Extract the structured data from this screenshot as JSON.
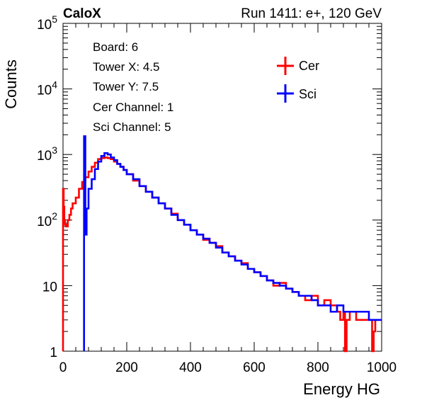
{
  "header": {
    "experiment": "CaloX",
    "run": "Run 1411: e+, 120 GeV"
  },
  "info": {
    "lines": [
      "Board: 6",
      "Tower X: 4.5",
      "Tower Y: 7.5",
      "Cer Channel: 1",
      "Sci Channel: 5"
    ]
  },
  "chart_data": {
    "type": "line",
    "histogram": true,
    "xlabel": "Energy HG",
    "ylabel": "Counts",
    "xlim": [
      0,
      1000
    ],
    "ylim": [
      1,
      100000
    ],
    "ylog": true,
    "x_ticks": [
      0,
      200,
      400,
      600,
      800,
      1000
    ],
    "x_tick_labels": [
      "0",
      "200",
      "400",
      "600",
      "800",
      "1000"
    ],
    "y_ticks": [
      1,
      10,
      100,
      1000,
      10000,
      100000
    ],
    "y_tick_labels": [
      {
        "base": "1",
        "exp": ""
      },
      {
        "base": "10",
        "exp": ""
      },
      {
        "base": "10",
        "exp": "2"
      },
      {
        "base": "10",
        "exp": "3"
      },
      {
        "base": "10",
        "exp": "4"
      },
      {
        "base": "10",
        "exp": "5"
      }
    ],
    "legend_position": "top-right",
    "grid": false,
    "series": [
      {
        "name": "Cer",
        "color": "#ff0000",
        "x": [
          0,
          2,
          4,
          6,
          10,
          15,
          20,
          25,
          30,
          40,
          50,
          60,
          70,
          80,
          90,
          100,
          110,
          120,
          130,
          140,
          150,
          160,
          170,
          180,
          190,
          200,
          220,
          240,
          260,
          280,
          300,
          320,
          340,
          360,
          380,
          400,
          420,
          440,
          460,
          480,
          500,
          520,
          540,
          560,
          580,
          600,
          620,
          640,
          660,
          680,
          700,
          720,
          740,
          760,
          780,
          800,
          820,
          840,
          860,
          870,
          880,
          885,
          890,
          900,
          920,
          940,
          960,
          970,
          975,
          980,
          990,
          1000
        ],
        "y": [
          300,
          160,
          100,
          85,
          80,
          100,
          120,
          150,
          180,
          220,
          300,
          380,
          450,
          550,
          650,
          750,
          850,
          880,
          900,
          880,
          850,
          780,
          720,
          650,
          580,
          500,
          400,
          330,
          270,
          220,
          180,
          150,
          125,
          100,
          85,
          70,
          60,
          50,
          45,
          40,
          32,
          28,
          24,
          22,
          18,
          16,
          14,
          12,
          10,
          11,
          9,
          8,
          7,
          6,
          7,
          5,
          6,
          5,
          4,
          3,
          4,
          1,
          3,
          4,
          3,
          3,
          3,
          1,
          2,
          3,
          3,
          3
        ]
      },
      {
        "name": "Sci",
        "color": "#0000ff",
        "x": [
          66,
          70,
          74,
          80,
          90,
          100,
          110,
          120,
          130,
          140,
          150,
          160,
          170,
          180,
          190,
          200,
          220,
          240,
          260,
          280,
          300,
          320,
          340,
          360,
          380,
          400,
          420,
          440,
          460,
          480,
          500,
          520,
          540,
          560,
          580,
          600,
          620,
          640,
          660,
          680,
          700,
          720,
          740,
          760,
          780,
          800,
          820,
          840,
          860,
          880,
          900,
          920,
          940,
          960,
          980,
          1000
        ],
        "y": [
          1900,
          60,
          150,
          300,
          420,
          600,
          780,
          950,
          1050,
          1000,
          900,
          820,
          720,
          650,
          580,
          500,
          420,
          330,
          270,
          220,
          180,
          150,
          120,
          100,
          85,
          70,
          60,
          52,
          45,
          38,
          32,
          28,
          24,
          21,
          18,
          16,
          14,
          12,
          11,
          10,
          9,
          8,
          7,
          7,
          6,
          5,
          5,
          4,
          5,
          4,
          4,
          4,
          4,
          3,
          3,
          3
        ]
      }
    ]
  }
}
